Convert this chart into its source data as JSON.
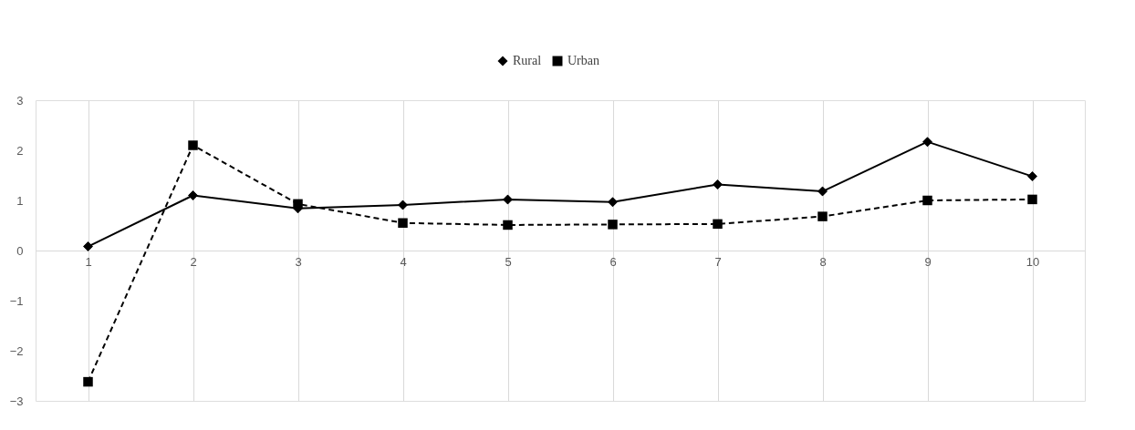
{
  "chart_data": {
    "type": "line",
    "categories": [
      "1",
      "2",
      "3",
      "4",
      "5",
      "6",
      "7",
      "8",
      "9",
      "10"
    ],
    "series": [
      {
        "name": "Rural",
        "color": "#000000",
        "marker": "diamond",
        "line_style": "solid",
        "values": [
          0.08,
          1.1,
          0.84,
          0.91,
          1.02,
          0.97,
          1.32,
          1.18,
          2.17,
          1.48
        ]
      },
      {
        "name": "Urban",
        "color": "#000000",
        "marker": "square",
        "line_style": "dashed",
        "values": [
          -2.62,
          2.1,
          0.93,
          0.55,
          0.51,
          0.52,
          0.53,
          0.68,
          1.0,
          1.02
        ]
      }
    ],
    "ylim": [
      -3,
      3
    ],
    "yticks": [
      -3,
      -2,
      -1,
      0,
      1,
      2,
      3
    ],
    "grid": "x",
    "legend": "top"
  }
}
